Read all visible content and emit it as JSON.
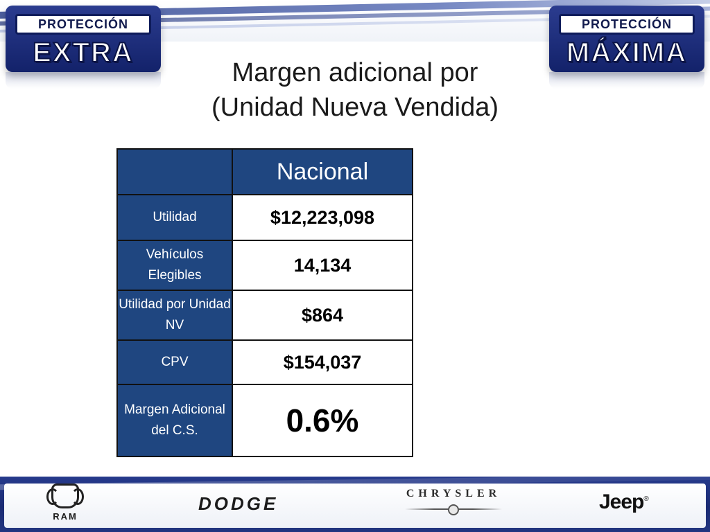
{
  "badges": {
    "left": {
      "tag": "PROTECCIÓN",
      "big": "EXTRA"
    },
    "right": {
      "tag": "PROTECCIÓN",
      "big": "MÁXIMA"
    }
  },
  "title": {
    "line1": "Margen adicional por",
    "line2": "(Unidad Nueva Vendida)"
  },
  "table": {
    "header": "Nacional",
    "rows": [
      {
        "label": "Utilidad",
        "value": "$12,223,098"
      },
      {
        "label": "Vehículos Elegibles",
        "value": "14,134"
      },
      {
        "label": "Utilidad por Unidad NV",
        "value": "$864"
      },
      {
        "label": "CPV",
        "value": "$154,037"
      },
      {
        "label": "Margen Adicional del C.S.",
        "value": "0.6%"
      }
    ]
  },
  "brands": {
    "ram": "RAM",
    "dodge": "DODGE",
    "chrysler": "CHRYSLER",
    "jeep": "Jeep",
    "jeep_mark": "®"
  }
}
